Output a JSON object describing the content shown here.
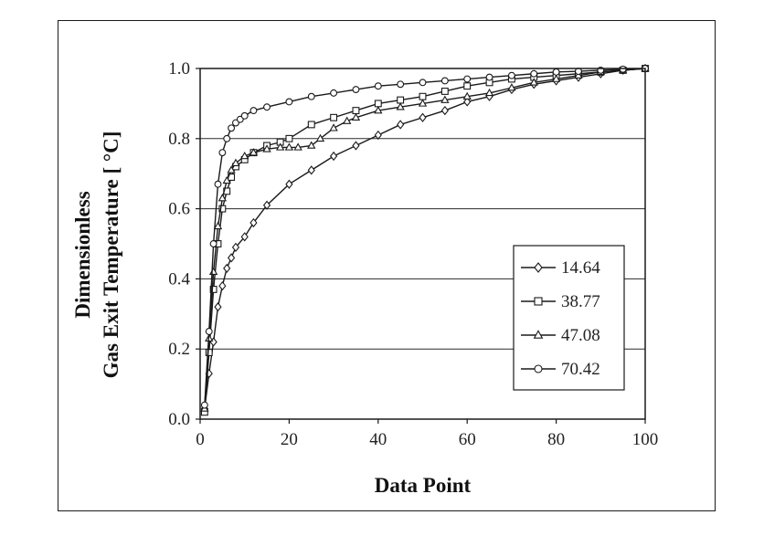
{
  "chart_data": {
    "type": "line",
    "xlabel": "Data Point",
    "ylabel_lines": [
      "Dimensionless",
      "Gas Exit Temperature [  °C]"
    ],
    "xlim": [
      0,
      100
    ],
    "ylim": [
      0,
      1
    ],
    "x_ticks": [
      "0",
      "20",
      "40",
      "60",
      "80",
      "100"
    ],
    "y_ticks": [
      "0.0",
      "0.2",
      "0.4",
      "0.6",
      "0.8",
      "1.0"
    ],
    "grid": "horizontal",
    "legend_position": "right-middle",
    "series": [
      {
        "name": "14.64",
        "marker": "diamond",
        "x": [
          1,
          2,
          3,
          4,
          5,
          6,
          7,
          8,
          10,
          12,
          15,
          20,
          25,
          30,
          35,
          40,
          45,
          50,
          55,
          60,
          65,
          70,
          75,
          80,
          85,
          90,
          95,
          100
        ],
        "y": [
          0.03,
          0.13,
          0.22,
          0.32,
          0.38,
          0.43,
          0.46,
          0.49,
          0.52,
          0.56,
          0.61,
          0.67,
          0.71,
          0.75,
          0.78,
          0.81,
          0.84,
          0.86,
          0.88,
          0.905,
          0.92,
          0.94,
          0.955,
          0.965,
          0.975,
          0.985,
          0.995,
          1.0
        ]
      },
      {
        "name": "38.77",
        "marker": "square",
        "x": [
          1,
          2,
          3,
          4,
          5,
          6,
          7,
          8,
          10,
          12,
          15,
          18,
          20,
          25,
          30,
          35,
          40,
          45,
          50,
          55,
          60,
          65,
          70,
          75,
          80,
          85,
          90,
          95,
          100
        ],
        "y": [
          0.02,
          0.19,
          0.37,
          0.5,
          0.6,
          0.65,
          0.69,
          0.72,
          0.74,
          0.76,
          0.78,
          0.79,
          0.8,
          0.84,
          0.86,
          0.88,
          0.9,
          0.91,
          0.92,
          0.935,
          0.95,
          0.96,
          0.97,
          0.975,
          0.98,
          0.985,
          0.99,
          0.995,
          1.0
        ]
      },
      {
        "name": "47.08",
        "marker": "triangle",
        "x": [
          1,
          2,
          3,
          4,
          5,
          6,
          7,
          8,
          10,
          12,
          15,
          18,
          20,
          22,
          25,
          27,
          30,
          33,
          35,
          40,
          45,
          50,
          55,
          60,
          65,
          70,
          75,
          80,
          85,
          90,
          95,
          100
        ],
        "y": [
          0.03,
          0.23,
          0.42,
          0.55,
          0.63,
          0.68,
          0.71,
          0.73,
          0.75,
          0.76,
          0.77,
          0.775,
          0.775,
          0.775,
          0.78,
          0.8,
          0.83,
          0.85,
          0.86,
          0.88,
          0.89,
          0.9,
          0.91,
          0.92,
          0.93,
          0.945,
          0.96,
          0.97,
          0.98,
          0.99,
          0.995,
          1.0
        ]
      },
      {
        "name": "70.42",
        "marker": "circle",
        "x": [
          1,
          2,
          3,
          4,
          5,
          6,
          7,
          8,
          9,
          10,
          12,
          15,
          20,
          25,
          30,
          35,
          40,
          45,
          50,
          55,
          60,
          65,
          70,
          75,
          80,
          85,
          90,
          95,
          100
        ],
        "y": [
          0.04,
          0.25,
          0.5,
          0.67,
          0.76,
          0.8,
          0.83,
          0.845,
          0.855,
          0.865,
          0.88,
          0.89,
          0.905,
          0.92,
          0.93,
          0.94,
          0.95,
          0.955,
          0.96,
          0.965,
          0.97,
          0.975,
          0.98,
          0.985,
          0.99,
          0.992,
          0.995,
          0.998,
          1.0
        ]
      }
    ]
  }
}
